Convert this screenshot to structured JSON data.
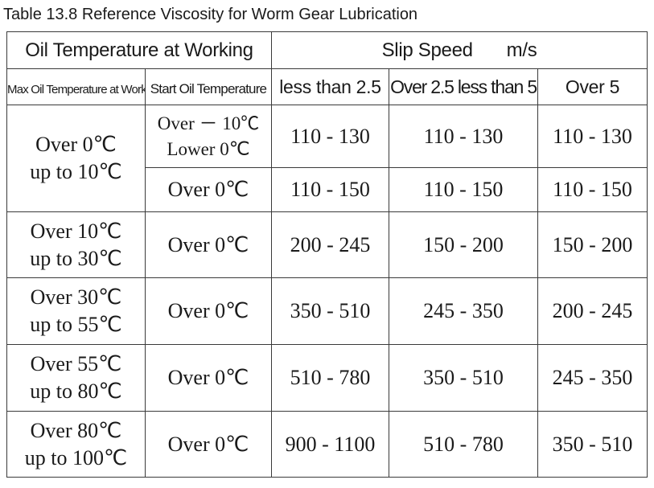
{
  "caption": "Table 13.8 Reference Viscosity for Worm Gear Lubrication",
  "header": {
    "oil_temp_working": "Oil Temperature at Working",
    "slip_speed": "Slip Speed",
    "slip_speed_unit": "m/s",
    "max_oil_temp": "Max Oil Temperature at Working",
    "start_oil_temp": "Start Oil Temperature",
    "speed_1": "less than 2.5",
    "speed_2": "Over 2.5 less than 5",
    "speed_3": "Over 5"
  },
  "rows": [
    {
      "max_temp_line1": "Over 0℃",
      "max_temp_line2": "up to 10℃",
      "start_temp_line1": "Over － 10℃",
      "start_temp_line2": "Lower 0℃",
      "v1": "110 - 130",
      "v2": "110 - 130",
      "v3": "110 - 130"
    },
    {
      "start_temp": "Over 0℃",
      "v1": "110 - 150",
      "v2": "110 - 150",
      "v3": "110 - 150"
    },
    {
      "max_temp_line1": "Over 10℃",
      "max_temp_line2": "up to 30℃",
      "start_temp": "Over 0℃",
      "v1": "200 - 245",
      "v2": "150 - 200",
      "v3": "150 - 200"
    },
    {
      "max_temp_line1": "Over 30℃",
      "max_temp_line2": "up to 55℃",
      "start_temp": "Over 0℃",
      "v1": "350 - 510",
      "v2": "245 - 350",
      "v3": "200 - 245"
    },
    {
      "max_temp_line1": "Over 55℃",
      "max_temp_line2": "up to 80℃",
      "start_temp": "Over 0℃",
      "v1": "510 - 780",
      "v2": "350 - 510",
      "v3": "245 - 350"
    },
    {
      "max_temp_line1": "Over 80℃",
      "max_temp_line2": "up to 100℃",
      "start_temp": "Over 0℃",
      "v1": "900 - 1100",
      "v2": "510 - 780",
      "v3": "350 - 510"
    }
  ]
}
